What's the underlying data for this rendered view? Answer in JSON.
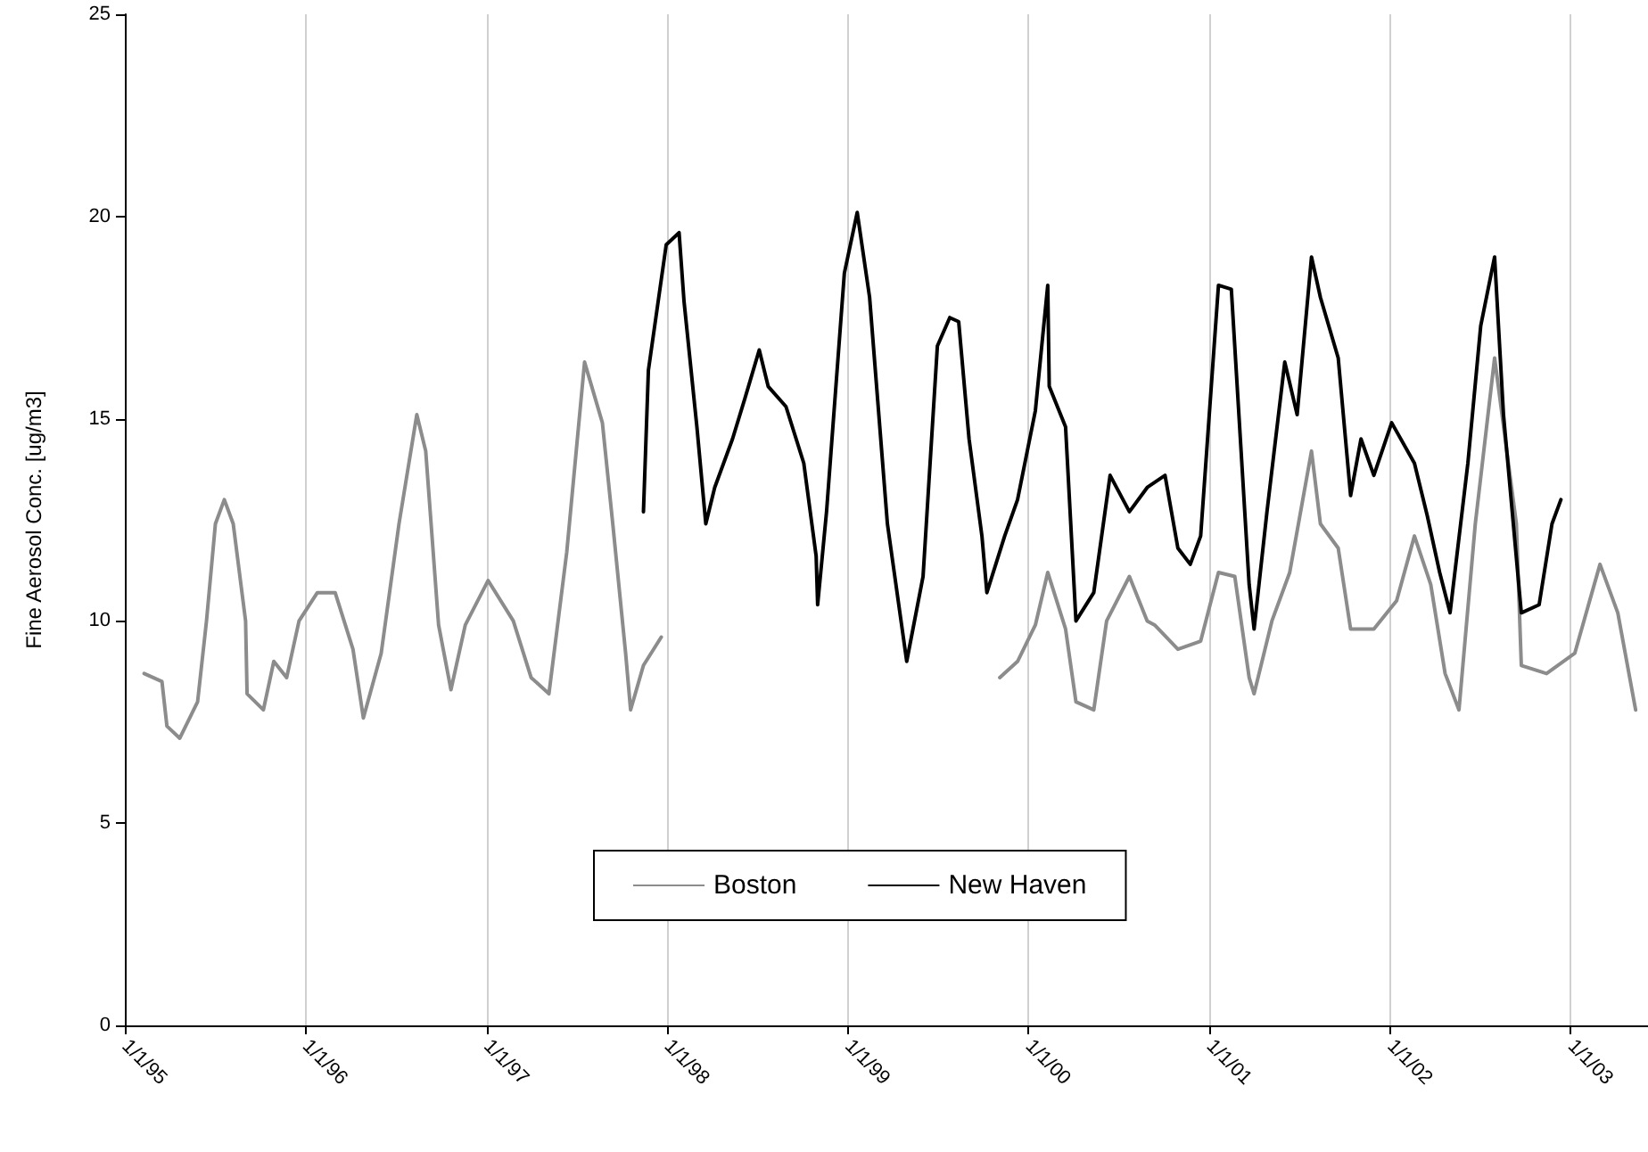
{
  "chart_data": {
    "type": "line",
    "ylabel": "Fine Aerosol Conc. [ug/m3]",
    "xlim": [
      "1995-01-01",
      "2003-06-06"
    ],
    "xticks": [
      {
        "value": "1995-01-01",
        "label": "1/1/95"
      },
      {
        "value": "1996-01-01",
        "label": "1/1/96"
      },
      {
        "value": "1997-01-01",
        "label": "1/1/97"
      },
      {
        "value": "1998-01-01",
        "label": "1/1/98"
      },
      {
        "value": "1999-01-01",
        "label": "1/1/99"
      },
      {
        "value": "2000-01-01",
        "label": "1/1/00"
      },
      {
        "value": "2001-01-01",
        "label": "1/1/01"
      },
      {
        "value": "2002-01-01",
        "label": "1/1/02"
      },
      {
        "value": "2003-01-01",
        "label": "1/1/03"
      }
    ],
    "ylim": [
      0,
      25
    ],
    "yticks": [
      0,
      5,
      10,
      15,
      20,
      25
    ],
    "grid": "x",
    "legend": "bottom",
    "marker": "none",
    "line_style": "solid",
    "series": [
      {
        "name": "Boston",
        "color": "#8c8c8c",
        "x": [
          "1995-02-09",
          "1995-03-17",
          "1995-03-27",
          "1995-04-22",
          "1995-05-28",
          "1995-06-15",
          "1995-07-03",
          "1995-07-21",
          "1995-08-08",
          "1995-09-02",
          "1995-09-05",
          "1995-10-08",
          "1995-10-29",
          "1995-11-24",
          "1995-12-19",
          "1996-01-25",
          "1996-03-01",
          "1996-04-06",
          "1996-04-27",
          "1996-06-02",
          "1996-07-08",
          "1996-08-13",
          "1996-08-31",
          "1996-09-26",
          "1996-10-21",
          "1996-11-19",
          "1997-01-04",
          "1997-02-24",
          "1997-04-01",
          "1997-05-07",
          "1997-06-12",
          "1997-07-18",
          "1997-08-23",
          "1997-09-13",
          "1997-10-09",
          "1997-10-19",
          "1997-11-14",
          "1997-12-20",
          "1998-12-01",
          "1999-11-04",
          "1999-12-10",
          "2000-01-15",
          "2000-02-09",
          "2000-03-16",
          "2000-04-06",
          "2000-05-12",
          "2000-06-07",
          "2000-07-23",
          "2000-08-28",
          "2000-09-12",
          "2000-10-29",
          "2000-12-14",
          "2001-01-19",
          "2001-02-21",
          "2001-03-22",
          "2001-04-01",
          "2001-05-07",
          "2001-06-12",
          "2001-07-26",
          "2001-08-13",
          "2001-09-18",
          "2001-10-13",
          "2001-11-29",
          "2002-01-14",
          "2002-02-19",
          "2002-03-24",
          "2002-04-22",
          "2002-05-20",
          "2002-06-22",
          "2002-07-31",
          "2002-09-13",
          "2002-09-23",
          "2002-11-13",
          "2003-01-09",
          "2003-03-01",
          "2003-04-06",
          "2003-05-12"
        ],
        "values": [
          8.7,
          8.5,
          7.4,
          7.1,
          8.0,
          10.0,
          12.4,
          13.0,
          12.4,
          10.0,
          8.2,
          7.8,
          9.0,
          8.6,
          10.0,
          10.7,
          10.7,
          9.3,
          7.6,
          9.2,
          12.4,
          15.1,
          14.2,
          9.9,
          8.3,
          9.9,
          11.0,
          10.0,
          8.6,
          8.2,
          11.7,
          16.4,
          14.9,
          12.4,
          9.2,
          7.8,
          8.9,
          9.6,
          null,
          8.6,
          9.0,
          9.9,
          11.2,
          9.8,
          8.0,
          7.8,
          10.0,
          11.1,
          10.0,
          9.9,
          9.3,
          9.5,
          11.2,
          11.1,
          8.6,
          8.2,
          10.0,
          11.2,
          14.2,
          12.4,
          11.8,
          9.8,
          9.8,
          10.5,
          12.1,
          10.9,
          8.7,
          7.8,
          12.4,
          16.5,
          12.4,
          8.9,
          8.7,
          9.2,
          11.4,
          10.2,
          7.8
        ]
      },
      {
        "name": "New Haven",
        "color": "#000000",
        "x": [
          "1997-11-14",
          "1997-11-24",
          "1997-12-30",
          "1998-01-25",
          "1998-02-04",
          "1998-03-02",
          "1998-03-20",
          "1998-04-07",
          "1998-05-13",
          "1998-06-07",
          "1998-07-06",
          "1998-07-24",
          "1998-08-29",
          "1998-10-04",
          "1998-10-29",
          "1998-11-01",
          "1998-11-19",
          "1998-12-25",
          "1999-01-20",
          "1999-02-14",
          "1999-03-22",
          "1999-04-30",
          "1999-06-02",
          "1999-07-01",
          "1999-07-26",
          "1999-08-13",
          "1999-09-03",
          "1999-09-29",
          "1999-10-09",
          "1999-11-14",
          "1999-12-10",
          "2000-01-15",
          "2000-02-09",
          "2000-02-12",
          "2000-03-16",
          "2000-04-06",
          "2000-05-12",
          "2000-06-14",
          "2000-07-23",
          "2000-08-28",
          "2000-10-03",
          "2000-10-29",
          "2000-11-23",
          "2000-12-14",
          "2001-01-19",
          "2001-02-14",
          "2001-03-22",
          "2001-04-01",
          "2001-04-27",
          "2001-06-02",
          "2001-06-27",
          "2001-07-26",
          "2001-08-13",
          "2001-09-18",
          "2001-10-13",
          "2001-11-03",
          "2001-11-29",
          "2002-01-04",
          "2002-02-19",
          "2002-03-17",
          "2002-04-11",
          "2002-05-02",
          "2002-06-07",
          "2002-07-03",
          "2002-07-31",
          "2002-08-18",
          "2002-09-23",
          "2002-10-29",
          "2002-11-24",
          "2002-12-12"
        ],
        "values": [
          12.7,
          16.2,
          19.3,
          19.6,
          17.9,
          14.8,
          12.4,
          13.3,
          14.5,
          15.5,
          16.7,
          15.8,
          15.3,
          13.9,
          11.6,
          10.4,
          12.7,
          18.6,
          20.1,
          18.0,
          12.4,
          9.0,
          11.1,
          16.8,
          17.5,
          17.4,
          14.5,
          12.1,
          10.7,
          12.1,
          13.0,
          15.2,
          18.3,
          15.8,
          14.8,
          10.0,
          10.7,
          13.6,
          12.7,
          13.3,
          13.6,
          11.8,
          11.4,
          12.1,
          18.3,
          18.2,
          10.9,
          9.8,
          12.7,
          16.4,
          15.1,
          19.0,
          18.0,
          16.5,
          13.1,
          14.5,
          13.6,
          14.9,
          13.9,
          12.6,
          11.2,
          10.2,
          13.9,
          17.3,
          19.0,
          15.1,
          10.2,
          10.4,
          12.4,
          13.0
        ]
      }
    ]
  }
}
